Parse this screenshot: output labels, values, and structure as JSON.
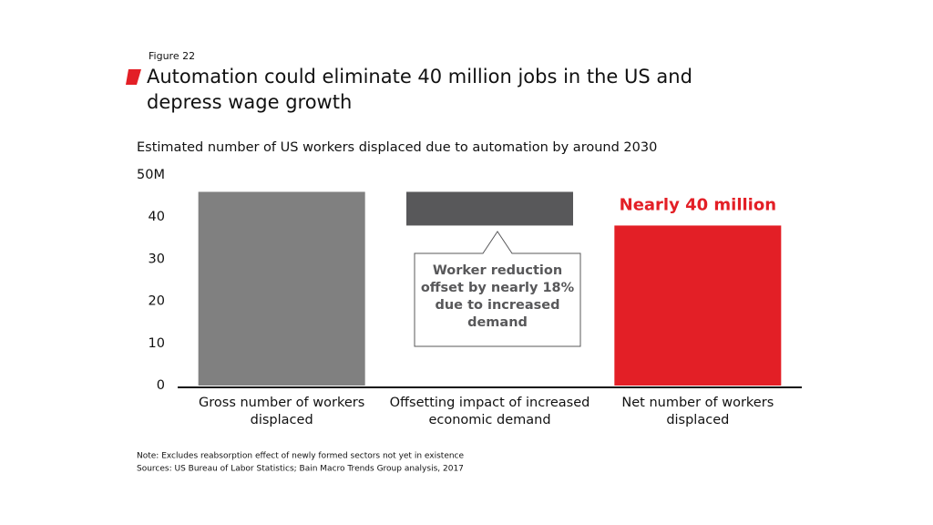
{
  "chart_data": {
    "type": "waterfall",
    "figure_label": "Figure 22",
    "title": "Automation could eliminate 40 million jobs in the US and depress wage growth",
    "subtitle": "Estimated number of US workers displaced due to automation by around 2030",
    "categories": [
      "Gross number of workers displaced",
      "Offsetting impact of increased economic demand",
      "Net number of workers displaced"
    ],
    "values": [
      46,
      -8,
      38
    ],
    "colors": [
      "#808080",
      "#58585a",
      "#e31f26"
    ],
    "ylim": [
      0,
      50
    ],
    "yticks": [
      0,
      10,
      20,
      30,
      40,
      {
        "value": 50,
        "label": "50M"
      }
    ],
    "annotations": [
      "Nearly 40 million",
      "Worker reduction offset by nearly 18% due to increased demand"
    ],
    "note": "Note: Excludes reabsorption effect of newly formed sectors not yet in existence",
    "sources": "Sources: US Bureau of Labor Statistics; Bain Macro Trends Group analysis, 2017"
  }
}
